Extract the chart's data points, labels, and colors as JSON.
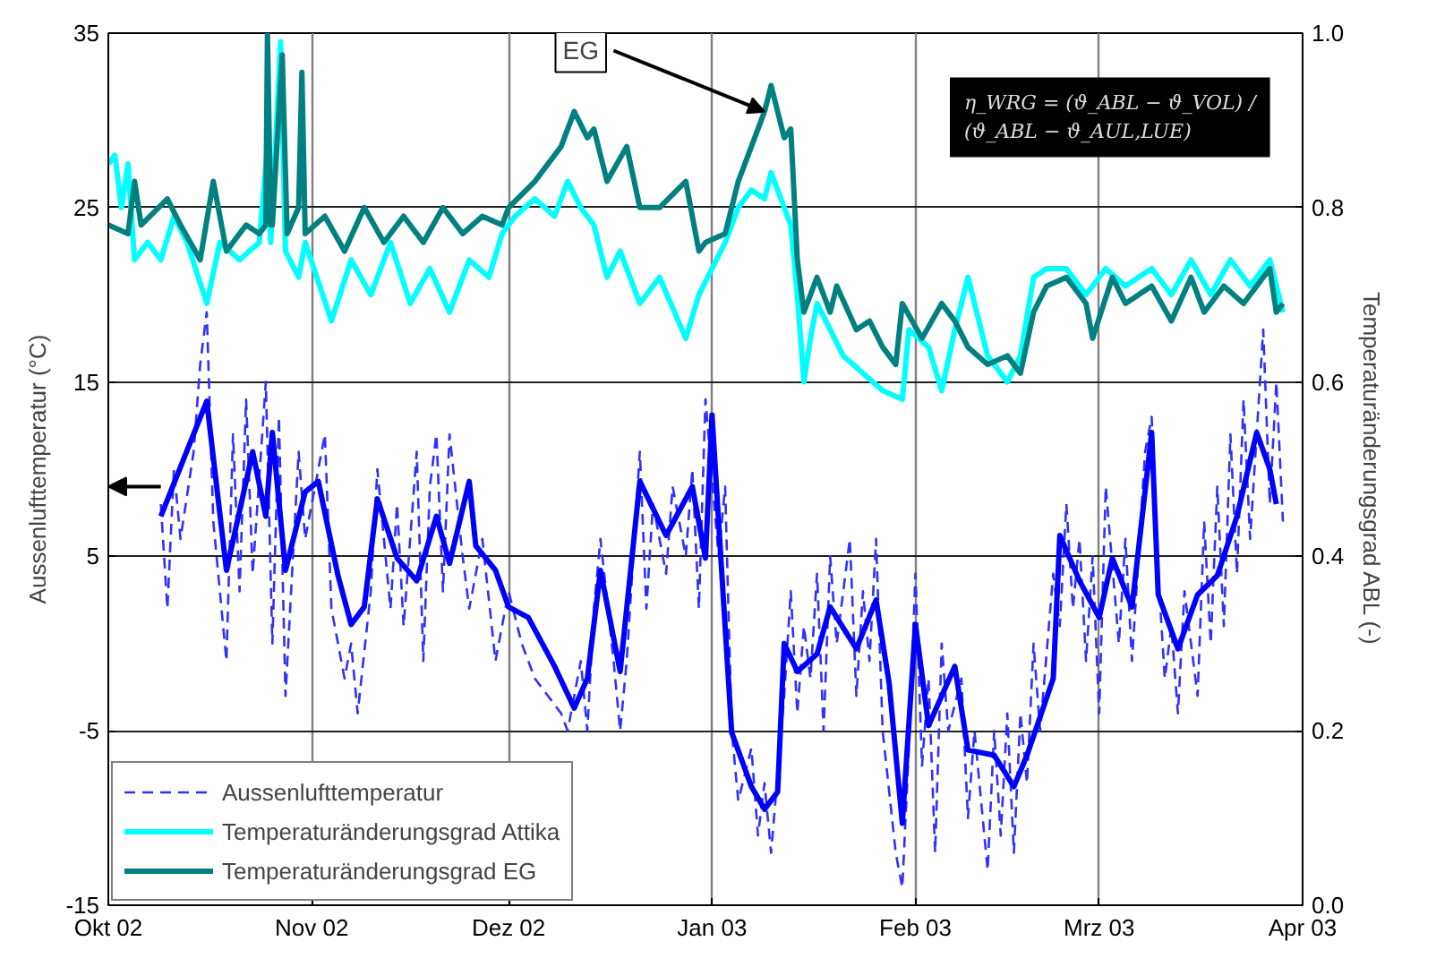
{
  "chart_data": {
    "type": "line",
    "xlabel": null,
    "ylabel": "Aussenlufttemperatur (°C)",
    "y2label": "Temperaturänderungsgrad ABL (-)",
    "xlim": [
      "2002-10-01",
      "2003-04-01"
    ],
    "xticks": [
      {
        "value": "2002-10-01",
        "label": "Okt 02"
      },
      {
        "value": "2002-11-01",
        "label": "Nov 02"
      },
      {
        "value": "2002-12-01",
        "label": "Dez 02"
      },
      {
        "value": "2003-01-01",
        "label": "Jan 03"
      },
      {
        "value": "2003-02-01",
        "label": "Feb 03"
      },
      {
        "value": "2003-03-01",
        "label": "Mrz 03"
      },
      {
        "value": "2003-04-01",
        "label": "Apr 03"
      }
    ],
    "ylim": [
      -15,
      35
    ],
    "yticks": [
      -15,
      -5,
      5,
      15,
      25,
      35
    ],
    "y2lim": [
      0,
      1
    ],
    "y2ticks": [
      {
        "value": 0,
        "label": "0.0"
      },
      {
        "value": 0.2,
        "label": "0.2"
      },
      {
        "value": 0.4,
        "label": "0.4"
      },
      {
        "value": 0.6,
        "label": "0.6"
      },
      {
        "value": 0.8,
        "label": "0.8"
      },
      {
        "value": 1,
        "label": "1.0"
      }
    ],
    "grid": true,
    "legend": "bottom left",
    "annotations": [
      {
        "text": "EG",
        "x": "2003-01-09",
        "y": 30.5
      },
      "η_WRG = (ϑ_ABL − ϑ_VOL) / (ϑ_ABL − ϑ_AUL,LUE)"
    ],
    "series": [
      {
        "name": "Aussenlufttemperatur",
        "color": "#3030ff",
        "line_style": "dashed",
        "x": [
          "2002-10-09",
          "2002-10-10",
          "2002-10-11",
          "2002-10-12",
          "2002-10-14",
          "2002-10-15",
          "2002-10-16",
          "2002-10-17",
          "2002-10-19",
          "2002-10-20",
          "2002-10-21",
          "2002-10-22",
          "2002-10-23",
          "2002-10-25",
          "2002-10-26",
          "2002-10-27",
          "2002-10-28",
          "2002-10-30",
          "2002-10-31",
          "2002-11-02",
          "2002-11-03",
          "2002-11-04",
          "2002-11-06",
          "2002-11-07",
          "2002-11-08",
          "2002-11-10",
          "2002-11-11",
          "2002-11-13",
          "2002-11-14",
          "2002-11-15",
          "2002-11-17",
          "2002-11-18",
          "2002-11-19",
          "2002-11-20",
          "2002-11-21",
          "2002-11-22",
          "2002-11-24",
          "2002-11-25",
          "2002-11-27",
          "2002-11-29",
          "2002-12-01",
          "2002-12-03",
          "2002-12-05",
          "2002-12-07",
          "2002-12-09",
          "2002-12-10",
          "2002-12-11",
          "2002-12-12",
          "2002-12-13",
          "2002-12-14",
          "2002-12-15",
          "2002-12-17",
          "2002-12-18",
          "2002-12-19",
          "2002-12-21",
          "2002-12-22",
          "2002-12-23",
          "2002-12-25",
          "2002-12-26",
          "2002-12-28",
          "2002-12-29",
          "2002-12-30",
          "2002-12-31",
          "2003-01-02",
          "2003-01-03",
          "2003-01-04",
          "2003-01-05",
          "2003-01-07",
          "2003-01-08",
          "2003-01-09",
          "2003-01-10",
          "2003-01-12",
          "2003-01-13",
          "2003-01-14",
          "2003-01-15",
          "2003-01-16",
          "2003-01-17",
          "2003-01-18",
          "2003-01-19",
          "2003-01-20",
          "2003-01-22",
          "2003-01-23",
          "2003-01-24",
          "2003-01-25",
          "2003-01-26",
          "2003-01-27",
          "2003-01-29",
          "2003-01-30",
          "2003-01-31",
          "2003-02-01",
          "2003-02-02",
          "2003-02-03",
          "2003-02-04",
          "2003-02-05",
          "2003-02-06",
          "2003-02-08",
          "2003-02-09",
          "2003-02-10",
          "2003-02-12",
          "2003-02-13",
          "2003-02-14",
          "2003-02-15",
          "2003-02-16",
          "2003-02-17",
          "2003-02-18",
          "2003-02-19",
          "2003-02-20",
          "2003-02-22",
          "2003-02-23",
          "2003-02-24",
          "2003-02-25",
          "2003-02-26",
          "2003-02-27",
          "2003-02-28",
          "2003-03-01",
          "2003-03-02",
          "2003-03-04",
          "2003-03-05",
          "2003-03-06",
          "2003-03-08",
          "2003-03-09",
          "2003-03-10",
          "2003-03-11",
          "2003-03-12",
          "2003-03-13",
          "2003-03-14",
          "2003-03-16",
          "2003-03-17",
          "2003-03-18",
          "2003-03-19",
          "2003-03-20",
          "2003-03-21",
          "2003-03-22",
          "2003-03-23",
          "2003-03-24",
          "2003-03-26",
          "2003-03-27",
          "2003-03-28",
          "2003-03-29"
        ],
        "values": [
          8,
          2,
          10,
          6,
          11,
          16,
          19,
          7,
          -1,
          12,
          3,
          14,
          4,
          15,
          0,
          13,
          -3,
          11,
          6,
          10,
          12,
          2,
          -2,
          0,
          -4,
          3,
          10,
          2,
          8,
          1,
          11,
          -1,
          9,
          12,
          3,
          12,
          5,
          2,
          6,
          -1,
          3,
          0,
          -2,
          -3,
          -4,
          -5,
          -3,
          -1,
          -5,
          2,
          6,
          -1,
          -5,
          -1,
          11,
          2,
          8,
          4,
          9,
          5,
          10,
          2,
          14,
          5,
          9,
          -5,
          -9,
          -6,
          -11,
          -8,
          -12,
          -3,
          3,
          -4,
          1,
          -2,
          4,
          -5,
          5,
          0,
          6,
          -3,
          3,
          -1,
          6,
          -5,
          -12,
          -14,
          -6,
          4,
          -7,
          -2,
          -12,
          0,
          -5,
          -2,
          -10,
          -5,
          -13,
          -5,
          -11,
          -4,
          -12,
          -4,
          -8,
          0,
          -5,
          4,
          1,
          8,
          2,
          6,
          -1,
          5,
          -4,
          9,
          0,
          6,
          -1,
          11,
          13,
          4,
          -2,
          1,
          -4,
          3,
          -3,
          7,
          0,
          9,
          1,
          12,
          4,
          14,
          6,
          18,
          8,
          15,
          7
        ]
      },
      {
        "color": "#0000ff",
        "line_style": "solid",
        "x": [
          "2002-10-09",
          "2002-10-16",
          "2002-10-19",
          "2002-10-23",
          "2002-10-25",
          "2002-10-26",
          "2002-10-28",
          "2002-10-31",
          "2002-11-02",
          "2002-11-05",
          "2002-11-07",
          "2002-11-09",
          "2002-11-11",
          "2002-11-14",
          "2002-11-17",
          "2002-11-20",
          "2002-11-22",
          "2002-11-25",
          "2002-11-26",
          "2002-11-29",
          "2002-12-01",
          "2002-12-04",
          "2002-12-08",
          "2002-12-11",
          "2002-12-13",
          "2002-12-15",
          "2002-12-18",
          "2002-12-21",
          "2002-12-25",
          "2002-12-29",
          "2002-12-31",
          "2003-01-01",
          "2003-01-02",
          "2003-01-04",
          "2003-01-07",
          "2003-01-09",
          "2003-01-11",
          "2003-01-12",
          "2003-01-14",
          "2003-01-17",
          "2003-01-19",
          "2003-01-23",
          "2003-01-26",
          "2003-01-28",
          "2003-01-30",
          "2003-02-01",
          "2003-02-03",
          "2003-02-07",
          "2003-02-09",
          "2003-02-13",
          "2003-02-16",
          "2003-02-18",
          "2003-02-22",
          "2003-02-23",
          "2003-02-26",
          "2003-03-01",
          "2003-03-03",
          "2003-03-06",
          "2003-03-09",
          "2003-03-10",
          "2003-03-13",
          "2003-03-16",
          "2003-03-19",
          "2003-03-22",
          "2003-03-25",
          "2003-03-27",
          "2003-03-28"
        ],
        "values": [
          7.3,
          13.9,
          4.2,
          11,
          7.3,
          12.1,
          4.2,
          8.7,
          9.3,
          3.9,
          1.1,
          2.1,
          8.3,
          4.9,
          3.6,
          7.3,
          4.6,
          9.3,
          5.6,
          4.2,
          2.1,
          1.5,
          -1.3,
          -3.7,
          -2,
          4.2,
          -1.6,
          9.3,
          6.2,
          9,
          4.9,
          13.1,
          7,
          -5.1,
          -8.2,
          -9.5,
          -8.5,
          0,
          -1.6,
          -0.6,
          2.1,
          -0.3,
          2.5,
          -2.3,
          -10.3,
          1.1,
          -4.7,
          -1.3,
          -6.1,
          -6.4,
          -8.2,
          -6.4,
          -2,
          6.2,
          3.6,
          1.5,
          4.9,
          2.1,
          12.1,
          2.8,
          -0.3,
          2.8,
          3.9,
          7.3,
          12.1,
          10,
          8
        ]
      },
      {
        "name": "Temperaturänderungsgrad Attika",
        "color": "#00ffff",
        "line_style": "solid",
        "axis": "y2",
        "x": [
          "2002-10-01",
          "2002-10-02",
          "2002-10-03",
          "2002-10-04",
          "2002-10-05",
          "2002-10-07",
          "2002-10-09",
          "2002-10-11",
          "2002-10-13",
          "2002-10-16",
          "2002-10-18",
          "2002-10-21",
          "2002-10-24",
          "2002-10-25T06:00",
          "2002-10-25T18:00",
          "2002-10-27T06:00",
          "2002-10-28",
          "2002-10-30",
          "2002-10-31",
          "2002-11-04",
          "2002-11-07",
          "2002-11-10",
          "2002-11-13",
          "2002-11-16",
          "2002-11-19",
          "2002-11-22",
          "2002-11-25",
          "2002-11-28",
          "2002-11-30",
          "2002-12-02",
          "2002-12-05",
          "2002-12-08",
          "2002-12-10",
          "2002-12-12",
          "2002-12-14",
          "2002-12-16",
          "2002-12-18",
          "2002-12-21",
          "2002-12-24",
          "2002-12-28",
          "2002-12-30",
          "2003-01-01",
          "2003-01-03",
          "2003-01-05",
          "2003-01-07",
          "2003-01-09",
          "2003-01-10",
          "2003-01-12",
          "2003-01-13",
          "2003-01-14",
          "2003-01-15",
          "2003-01-16",
          "2003-01-17",
          "2003-01-19",
          "2003-01-21",
          "2003-01-24",
          "2003-01-27",
          "2003-01-30",
          "2003-01-31",
          "2003-02-03",
          "2003-02-05",
          "2003-02-07",
          "2003-02-09",
          "2003-02-12",
          "2003-02-15",
          "2003-02-17",
          "2003-02-19",
          "2003-02-21",
          "2003-02-24",
          "2003-02-27",
          "2003-03-02",
          "2003-03-05",
          "2003-03-09",
          "2003-03-12",
          "2003-03-15",
          "2003-03-18",
          "2003-03-21",
          "2003-03-24",
          "2003-03-27",
          "2003-03-29"
        ],
        "values": [
          0.85,
          0.86,
          0.8,
          0.85,
          0.74,
          0.76,
          0.74,
          0.79,
          0.76,
          0.69,
          0.76,
          0.74,
          0.76,
          0.87,
          0.76,
          0.99,
          0.75,
          0.72,
          0.76,
          0.67,
          0.74,
          0.7,
          0.76,
          0.69,
          0.73,
          0.68,
          0.74,
          0.72,
          0.77,
          0.79,
          0.81,
          0.79,
          0.83,
          0.8,
          0.78,
          0.72,
          0.75,
          0.69,
          0.72,
          0.65,
          0.7,
          0.73,
          0.76,
          0.8,
          0.82,
          0.81,
          0.84,
          0.8,
          0.78,
          0.7,
          0.6,
          0.65,
          0.69,
          0.66,
          0.63,
          0.61,
          0.59,
          0.58,
          0.66,
          0.64,
          0.59,
          0.66,
          0.72,
          0.63,
          0.6,
          0.63,
          0.72,
          0.73,
          0.73,
          0.7,
          0.73,
          0.71,
          0.73,
          0.7,
          0.74,
          0.7,
          0.74,
          0.71,
          0.74,
          0.68
        ]
      },
      {
        "name": "Temperaturänderungsgrad EG",
        "color": "#008080",
        "line_style": "solid",
        "axis": "y2",
        "x": [
          "2002-10-01",
          "2002-10-04",
          "2002-10-05",
          "2002-10-06",
          "2002-10-10",
          "2002-10-12",
          "2002-10-15",
          "2002-10-17",
          "2002-10-19",
          "2002-10-22",
          "2002-10-24",
          "2002-10-25",
          "2002-10-25T06:00",
          "2002-10-25T18:00",
          "2002-10-26",
          "2002-10-27T12:00",
          "2002-10-28T06:00",
          "2002-10-30",
          "2002-10-30T12:00",
          "2002-10-31",
          "2002-11-03",
          "2002-11-06",
          "2002-11-09",
          "2002-11-12",
          "2002-11-15",
          "2002-11-18",
          "2002-11-21",
          "2002-11-24",
          "2002-11-27",
          "2002-11-30",
          "2002-12-01",
          "2002-12-05",
          "2002-12-09",
          "2002-12-11",
          "2002-12-13",
          "2002-12-14",
          "2002-12-16",
          "2002-12-19",
          "2002-12-21",
          "2002-12-24",
          "2002-12-28",
          "2002-12-30",
          "2002-12-31",
          "2003-01-03",
          "2003-01-05",
          "2003-01-07",
          "2003-01-09",
          "2003-01-10",
          "2003-01-12",
          "2003-01-13",
          "2003-01-14",
          "2003-01-15",
          "2003-01-17",
          "2003-01-19",
          "2003-01-20",
          "2003-01-23",
          "2003-01-25",
          "2003-01-27",
          "2003-01-29",
          "2003-01-30",
          "2003-02-02",
          "2003-02-05",
          "2003-02-07",
          "2003-02-09",
          "2003-02-12",
          "2003-02-15",
          "2003-02-17",
          "2003-02-19",
          "2003-02-21",
          "2003-02-24",
          "2003-02-27",
          "2003-02-28",
          "2003-03-03",
          "2003-03-05",
          "2003-03-09",
          "2003-03-12",
          "2003-03-15",
          "2003-03-17",
          "2003-03-20",
          "2003-03-23",
          "2003-03-27",
          "2003-03-28",
          "2003-03-29"
        ],
        "values": [
          0.78,
          0.77,
          0.83,
          0.78,
          0.81,
          0.78,
          0.74,
          0.83,
          0.75,
          0.78,
          0.77,
          0.78,
          1.0,
          0.78,
          0.78,
          0.975,
          0.77,
          0.8,
          0.955,
          0.77,
          0.79,
          0.75,
          0.8,
          0.76,
          0.79,
          0.76,
          0.8,
          0.77,
          0.79,
          0.78,
          0.8,
          0.83,
          0.87,
          0.91,
          0.88,
          0.89,
          0.83,
          0.87,
          0.8,
          0.8,
          0.83,
          0.75,
          0.76,
          0.77,
          0.83,
          0.87,
          0.91,
          0.94,
          0.88,
          0.89,
          0.74,
          0.68,
          0.72,
          0.68,
          0.71,
          0.66,
          0.67,
          0.64,
          0.62,
          0.69,
          0.65,
          0.69,
          0.67,
          0.64,
          0.62,
          0.63,
          0.61,
          0.68,
          0.71,
          0.72,
          0.69,
          0.65,
          0.72,
          0.69,
          0.71,
          0.67,
          0.72,
          0.68,
          0.71,
          0.69,
          0.73,
          0.68,
          0.69
        ]
      }
    ]
  }
}
